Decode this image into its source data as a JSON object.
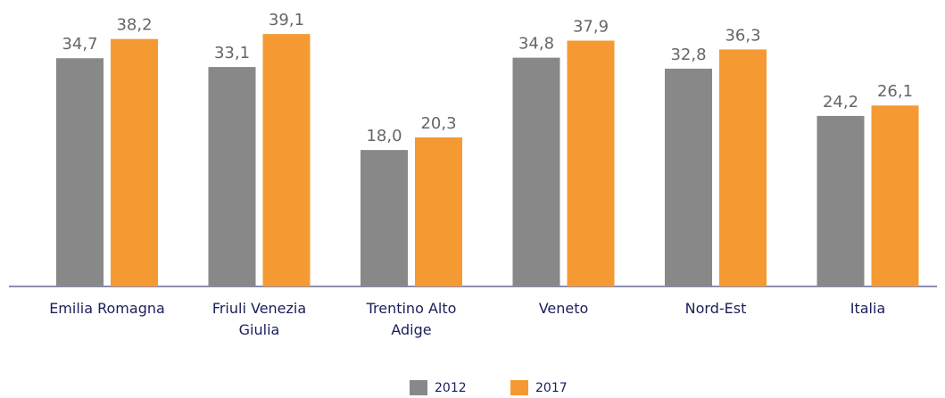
{
  "chart_data": {
    "type": "bar",
    "categories": [
      "Emilia Romagna",
      "Friuli Venezia Giulia",
      "Trentino Alto Adige",
      "Veneto",
      "Nord-Est",
      "Italia"
    ],
    "series": [
      {
        "name": "2012",
        "color": "#888888",
        "values": [
          34.7,
          33.1,
          18.0,
          34.8,
          32.8,
          24.2
        ],
        "value_labels": [
          "34,7",
          "33,1",
          "18,0",
          "34,8",
          "32,8",
          "24,2"
        ]
      },
      {
        "name": "2017",
        "color": "#f59a32",
        "values": [
          38.2,
          39.1,
          20.3,
          37.9,
          36.3,
          26.1
        ],
        "value_labels": [
          "38,2",
          "39,1",
          "20,3",
          "37,9",
          "36,3",
          "26,1"
        ]
      }
    ]
  }
}
